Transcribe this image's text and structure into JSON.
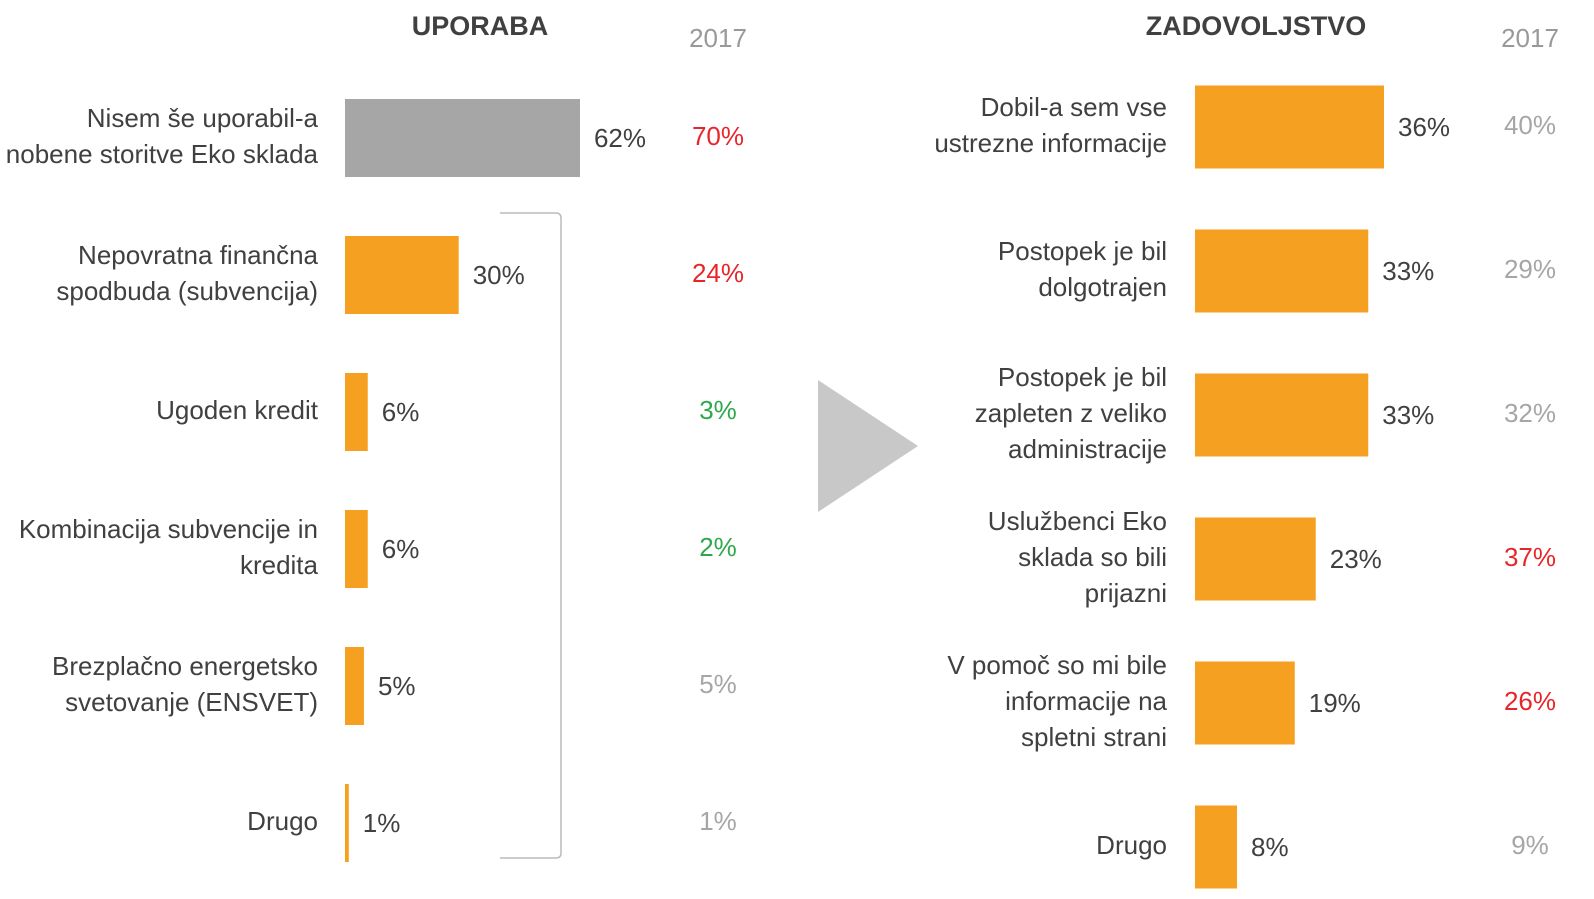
{
  "chart_data": [
    {
      "type": "bar",
      "orientation": "horizontal",
      "title": "UPORABA",
      "comparison_title": "2017",
      "categories": [
        [
          "Nisem še uporabil-a",
          "nobene storitve Eko sklada"
        ],
        [
          "Nepovratna finančna",
          "spodbuda (subvencija)"
        ],
        [
          "Ugoden kredit"
        ],
        [
          "Kombinacija subvencije in",
          "kredita"
        ],
        [
          "Brezplačno energetsko",
          "svetovanje (ENSVET)"
        ],
        [
          "Drugo"
        ]
      ],
      "values": [
        62,
        30,
        6,
        6,
        5,
        1
      ],
      "value_labels": [
        "62%",
        "30%",
        "6%",
        "6%",
        "5%",
        "1%"
      ],
      "colors": [
        "#a6a6a6",
        "#f5a020",
        "#f5a020",
        "#f5a020",
        "#f5a020",
        "#f5a020"
      ],
      "comparison": {
        "values": [
          70,
          24,
          3,
          2,
          5,
          1
        ],
        "labels": [
          "70%",
          "24%",
          "3%",
          "2%",
          "5%",
          "1%"
        ],
        "colors": [
          "#e8262a",
          "#e8262a",
          "#2ea84a",
          "#2ea84a",
          "#a6a6a6",
          "#a6a6a6"
        ]
      }
    },
    {
      "type": "bar",
      "orientation": "horizontal",
      "title": "ZADOVOLJSTVO",
      "comparison_title": "2017",
      "categories": [
        [
          "Dobil-a sem vse",
          "ustrezne informacije"
        ],
        [
          "Postopek je bil",
          "dolgotrajen"
        ],
        [
          "Postopek je bil",
          "zapleten z veliko",
          "administracije"
        ],
        [
          "Uslužbenci Eko",
          "sklada so bili",
          "prijazni"
        ],
        [
          "V pomoč so mi bile",
          "informacije na",
          "spletni strani"
        ],
        [
          "Drugo"
        ]
      ],
      "values": [
        36,
        33,
        33,
        23,
        19,
        8
      ],
      "value_labels": [
        "36%",
        "33%",
        "33%",
        "23%",
        "19%",
        "8%"
      ],
      "colors": [
        "#f5a020",
        "#f5a020",
        "#f5a020",
        "#f5a020",
        "#f5a020",
        "#f5a020"
      ],
      "comparison": {
        "values": [
          40,
          29,
          32,
          37,
          26,
          9
        ],
        "labels": [
          "40%",
          "29%",
          "32%",
          "37%",
          "26%",
          "9%"
        ],
        "colors": [
          "#a6a6a6",
          "#a6a6a6",
          "#a6a6a6",
          "#e8262a",
          "#e8262a",
          "#a6a6a6"
        ]
      }
    }
  ]
}
